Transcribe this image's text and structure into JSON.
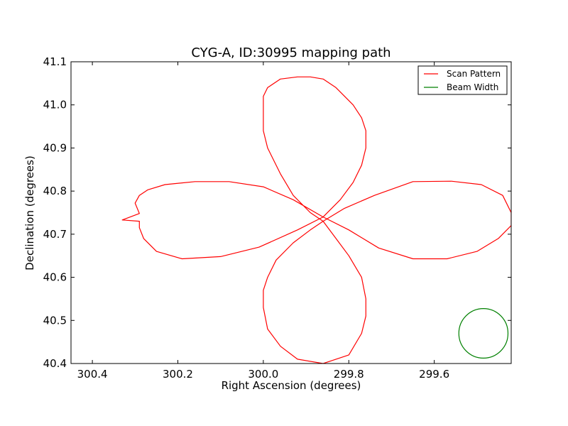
{
  "chart_data": {
    "type": "line",
    "title": "CYG-A, ID:30995 mapping path",
    "xlabel": "Right Ascension (degrees)",
    "ylabel": "Declination (degrees)",
    "xlim": [
      300.45,
      299.42
    ],
    "ylim": [
      40.4,
      41.1
    ],
    "x_reversed": true,
    "xticks": [
      300.4,
      300.2,
      300.0,
      299.8,
      299.6
    ],
    "xtick_labels": [
      "300.4",
      "300.2",
      "300.0",
      "299.8",
      "299.6"
    ],
    "yticks": [
      40.4,
      40.5,
      40.6,
      40.7,
      40.8,
      40.9,
      41.0,
      41.1
    ],
    "ytick_labels": [
      "40.4",
      "40.5",
      "40.6",
      "40.7",
      "40.8",
      "40.9",
      "41.0",
      "41.1"
    ],
    "grid": false,
    "legend_position": "top-right",
    "series": [
      {
        "name": "Scan Pattern",
        "color": "#ff0000",
        "x": [
          299.86,
          299.89,
          299.93,
          299.96,
          299.99,
          300.0,
          300.0,
          300.0,
          300.0,
          299.99,
          299.96,
          299.92,
          299.89,
          299.86,
          299.83,
          299.79,
          299.77,
          299.76,
          299.76,
          299.77,
          299.79,
          299.82,
          299.86,
          299.92,
          300.01,
          300.1,
          300.19,
          300.25,
          300.28,
          300.29,
          300.29,
          300.33,
          300.29,
          300.3,
          300.29,
          300.27,
          300.23,
          300.16,
          300.08,
          300.0,
          299.93,
          299.86,
          299.8,
          299.73,
          299.65,
          299.57,
          299.5,
          299.45,
          299.42,
          299.42,
          299.44,
          299.49,
          299.56,
          299.65,
          299.74,
          299.81,
          299.86,
          299.89,
          299.93,
          299.97,
          299.99,
          300.0,
          300.0,
          299.99,
          299.96,
          299.92,
          299.86,
          299.8,
          299.77,
          299.76,
          299.76,
          299.77,
          299.8,
          299.83,
          299.86
        ],
        "y": [
          40.73,
          40.75,
          40.79,
          40.84,
          40.9,
          40.94,
          40.97,
          41.0,
          41.02,
          41.04,
          41.06,
          41.065,
          41.065,
          41.06,
          41.04,
          41.0,
          40.97,
          40.94,
          40.9,
          40.86,
          40.82,
          40.78,
          40.74,
          40.71,
          40.67,
          40.648,
          40.643,
          40.66,
          40.69,
          40.715,
          40.73,
          40.733,
          40.748,
          40.772,
          40.79,
          40.803,
          40.815,
          40.822,
          40.822,
          40.81,
          40.78,
          40.74,
          40.71,
          40.668,
          40.643,
          40.643,
          40.66,
          40.69,
          40.72,
          40.75,
          40.79,
          40.815,
          40.823,
          40.822,
          40.79,
          40.76,
          40.73,
          40.71,
          40.68,
          40.64,
          40.6,
          40.57,
          40.53,
          40.48,
          40.44,
          40.41,
          40.4,
          40.42,
          40.47,
          40.51,
          40.55,
          40.6,
          40.65,
          40.69,
          40.73
        ]
      },
      {
        "name": "Beam Width",
        "color": "#008000",
        "center": [
          299.485,
          40.47
        ],
        "radius": 0.0575
      }
    ]
  }
}
